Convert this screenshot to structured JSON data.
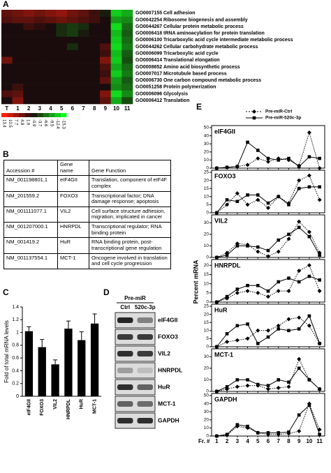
{
  "panel_labels": [
    "A",
    "B",
    "C",
    "D",
    "E"
  ],
  "chart_data": [
    {
      "type": "heatmap",
      "columns": [
        "T",
        "1",
        "2",
        "3",
        "4",
        "5",
        "6",
        "7",
        "8",
        "9",
        "10",
        "11"
      ],
      "row_ids": [
        "GO0007155",
        "GO0042254",
        "GO0044267",
        "GO0006418",
        "GO0006100",
        "GO0044262",
        "GO0006099",
        "GO0006414",
        "GO0008652",
        "GO0007017",
        "GO0006730",
        "GO0051258",
        "GO0006096",
        "GO0006412"
      ],
      "row_names": [
        "Cell adhesion",
        "Ribosome biogenesis and assembly",
        "Cellular protein metabolic process",
        "tRNA aminoacylation for protein translation",
        "Tricarboxylic acid cycle intermediate metabolic process",
        "Cellular carbohydrate metabolic process",
        "Tricarboxylic acid cycle",
        "Translational elongation",
        "Amino acid biosynthetic process",
        "Microtubule based process",
        "One carbon compound metabolic process",
        "Protein polymerization",
        "Glycolysis",
        "Translation"
      ],
      "values": [
        [
          4,
          5,
          6,
          5,
          6,
          7,
          5,
          4,
          2,
          -1,
          -12,
          -10
        ],
        [
          3,
          4,
          4,
          3,
          4,
          5,
          4,
          3,
          2,
          0,
          -9,
          -8
        ],
        [
          0,
          0,
          2,
          1,
          0,
          -2,
          -3,
          -2,
          0,
          0,
          -13,
          -6
        ],
        [
          0,
          0,
          0,
          0,
          0,
          -2,
          -3,
          -1,
          0,
          0,
          -11,
          -5
        ],
        [
          0,
          0,
          0,
          0,
          0,
          0,
          0,
          0,
          0,
          0,
          -12,
          -6
        ],
        [
          0,
          0,
          0,
          0,
          0,
          0,
          -2,
          0,
          0,
          3,
          -13,
          -7
        ],
        [
          0,
          0,
          0,
          0,
          0,
          0,
          0,
          0,
          0,
          2,
          -11,
          -5
        ],
        [
          5,
          0,
          0,
          0,
          0,
          0,
          0,
          0,
          0,
          6,
          -12,
          -4
        ],
        [
          0,
          0,
          0,
          0,
          0,
          0,
          0,
          0,
          0,
          3,
          -10,
          -6
        ],
        [
          0,
          0,
          0,
          0,
          0,
          0,
          0,
          0,
          0,
          2,
          -12,
          -7
        ],
        [
          0,
          0,
          0,
          0,
          0,
          0,
          0,
          0,
          0,
          4,
          -9,
          -5
        ],
        [
          0,
          2,
          0,
          0,
          0,
          0,
          0,
          0,
          0,
          0,
          -8,
          -6
        ],
        [
          3,
          4,
          0,
          0,
          0,
          0,
          0,
          0,
          0,
          6,
          -13,
          -8
        ],
        [
          0,
          6,
          0,
          0,
          0,
          0,
          0,
          0,
          0,
          4,
          -10,
          -4
        ]
      ],
      "colorbar_ticks": [
        13.4,
        10.5,
        7.7,
        4.8,
        1.9,
        -0.9,
        -3.7,
        -6.6,
        -9.5,
        -12.4,
        -15.3
      ],
      "color_high": "#ff2010",
      "color_mid": "#1a0c0c",
      "color_low": "#10ff20"
    },
    {
      "type": "bar",
      "ylabel": "Fold of total mRNA levels",
      "categories": [
        "eIF4GII",
        "FOXO3",
        "VIL2",
        "HNRPDL",
        "HuR",
        "MCT-1"
      ],
      "values": [
        1.02,
        0.77,
        0.5,
        1.06,
        0.88,
        1.14
      ],
      "errors": [
        0.07,
        0.12,
        0.07,
        0.12,
        0.13,
        0.15
      ],
      "ylim": [
        0,
        1.4
      ],
      "yticks": [
        0,
        0.2,
        0.4,
        0.6,
        0.8,
        1,
        1.2,
        1.4
      ],
      "color": "#000000"
    },
    {
      "type": "multi_line",
      "ylabel": "Percent mRNA",
      "xlabel": "Fr. #",
      "x": [
        1,
        2,
        3,
        4,
        5,
        6,
        7,
        8,
        9,
        10,
        11
      ],
      "xlim": [
        0.5,
        11.5
      ],
      "series": [
        {
          "name": "Pre-miR-Ctrl",
          "color": "#000000",
          "style": "dotted",
          "marker": "diamond"
        },
        {
          "name": "Pre-miR-520c-3p",
          "color": "#000000",
          "style": "solid",
          "marker": "square"
        }
      ],
      "panels": [
        {
          "title": "eIF4GII",
          "ylim": [
            0,
            50
          ],
          "yticks": [
            0,
            10,
            20,
            30,
            40,
            50
          ],
          "values": [
            [
              0,
              1,
              2,
              4,
              12,
              8,
              12,
              10,
              3,
              44,
              0
            ],
            [
              0,
              1,
              2,
              32,
              22,
              12,
              10,
              12,
              2,
              14,
              12
            ]
          ]
        },
        {
          "title": "FOXO3",
          "ylim": [
            0,
            25
          ],
          "yticks": [
            0,
            5,
            10,
            15,
            20,
            25
          ],
          "values": [
            [
              0,
              5,
              12,
              5,
              8,
              3,
              10,
              6,
              20,
              23,
              8
            ],
            [
              0,
              8,
              7,
              11,
              11,
              6,
              10,
              5,
              15,
              16,
              16
            ]
          ]
        },
        {
          "title": "VIL2",
          "ylim": [
            0,
            35
          ],
          "yticks": [
            0,
            10,
            20,
            30
          ],
          "values": [
            [
              0,
              4,
              12,
              11,
              5,
              1,
              5,
              16,
              31,
              22,
              4
            ],
            [
              0,
              2,
              10,
              10,
              9,
              6,
              15,
              20,
              26,
              18,
              2
            ]
          ]
        },
        {
          "title": "HNRPDL",
          "ylim": [
            0,
            22
          ],
          "yticks": [
            0,
            5,
            10,
            15,
            20
          ],
          "values": [
            [
              0,
              2,
              5,
              6,
              5,
              3,
              6,
              6,
              17,
              20,
              6
            ],
            [
              0,
              3,
              7,
              9,
              9,
              6,
              11,
              13,
              11,
              14,
              12
            ]
          ]
        },
        {
          "title": "HuR",
          "ylim": [
            0,
            25
          ],
          "yticks": [
            0,
            5,
            10,
            15,
            20,
            25
          ],
          "values": [
            [
              0,
              3,
              4,
              5,
              10,
              10,
              13,
              17,
              18,
              13,
              2
            ],
            [
              0,
              8,
              13,
              14,
              2,
              6,
              11,
              10,
              11,
              19,
              2
            ]
          ]
        },
        {
          "title": "MCT-1",
          "ylim": [
            0,
            35
          ],
          "yticks": [
            0,
            10,
            20,
            30
          ],
          "values": [
            [
              0,
              2,
              4,
              5,
              5,
              2,
              3,
              4,
              28,
              10,
              2
            ],
            [
              0,
              4,
              10,
              10,
              6,
              5,
              10,
              8,
              20,
              10,
              2
            ]
          ]
        },
        {
          "title": "GAPDH",
          "ylim": [
            0,
            50
          ],
          "yticks": [
            0,
            10,
            20,
            30,
            40,
            50
          ],
          "values": [
            [
              0,
              1,
              12,
              10,
              4,
              2,
              2,
              3,
              6,
              40,
              8
            ],
            [
              0,
              2,
              14,
              12,
              4,
              4,
              4,
              5,
              26,
              38,
              2
            ]
          ]
        }
      ]
    }
  ],
  "table": {
    "headers": [
      "Accession #",
      "Gene name",
      "Gene Function"
    ],
    "rows": [
      [
        "NM_001198801.1",
        "eIF4GII",
        "Translation, component of eIF4F complex"
      ],
      [
        "NM_201559.2",
        "FOXO3",
        "Transcriptional factor; DNA damage response; apoptosis"
      ],
      [
        "NM_001111077.1",
        "VIL2",
        "Cell surface structure adhesion, migration; implicated in cancer"
      ],
      [
        "NM_001207000.1",
        "HNRPDL",
        "Transcriptional regulator; RNA binding protein"
      ],
      [
        "NM_001419.2",
        "HuR",
        "RNA binding protein, post-transcriptional gene regulation"
      ],
      [
        "NM_001137554.1",
        "MCT-1",
        "Oncogene involved in translation and cell cycle progression"
      ]
    ]
  },
  "blot": {
    "header": "Pre-miR",
    "lanes": [
      "Ctrl",
      "520c-3p"
    ],
    "proteins": [
      "eIF4GII",
      "FOXO3",
      "VIL2",
      "HNRPDL",
      "HuR",
      "MCT-1",
      "GAPDH"
    ]
  }
}
